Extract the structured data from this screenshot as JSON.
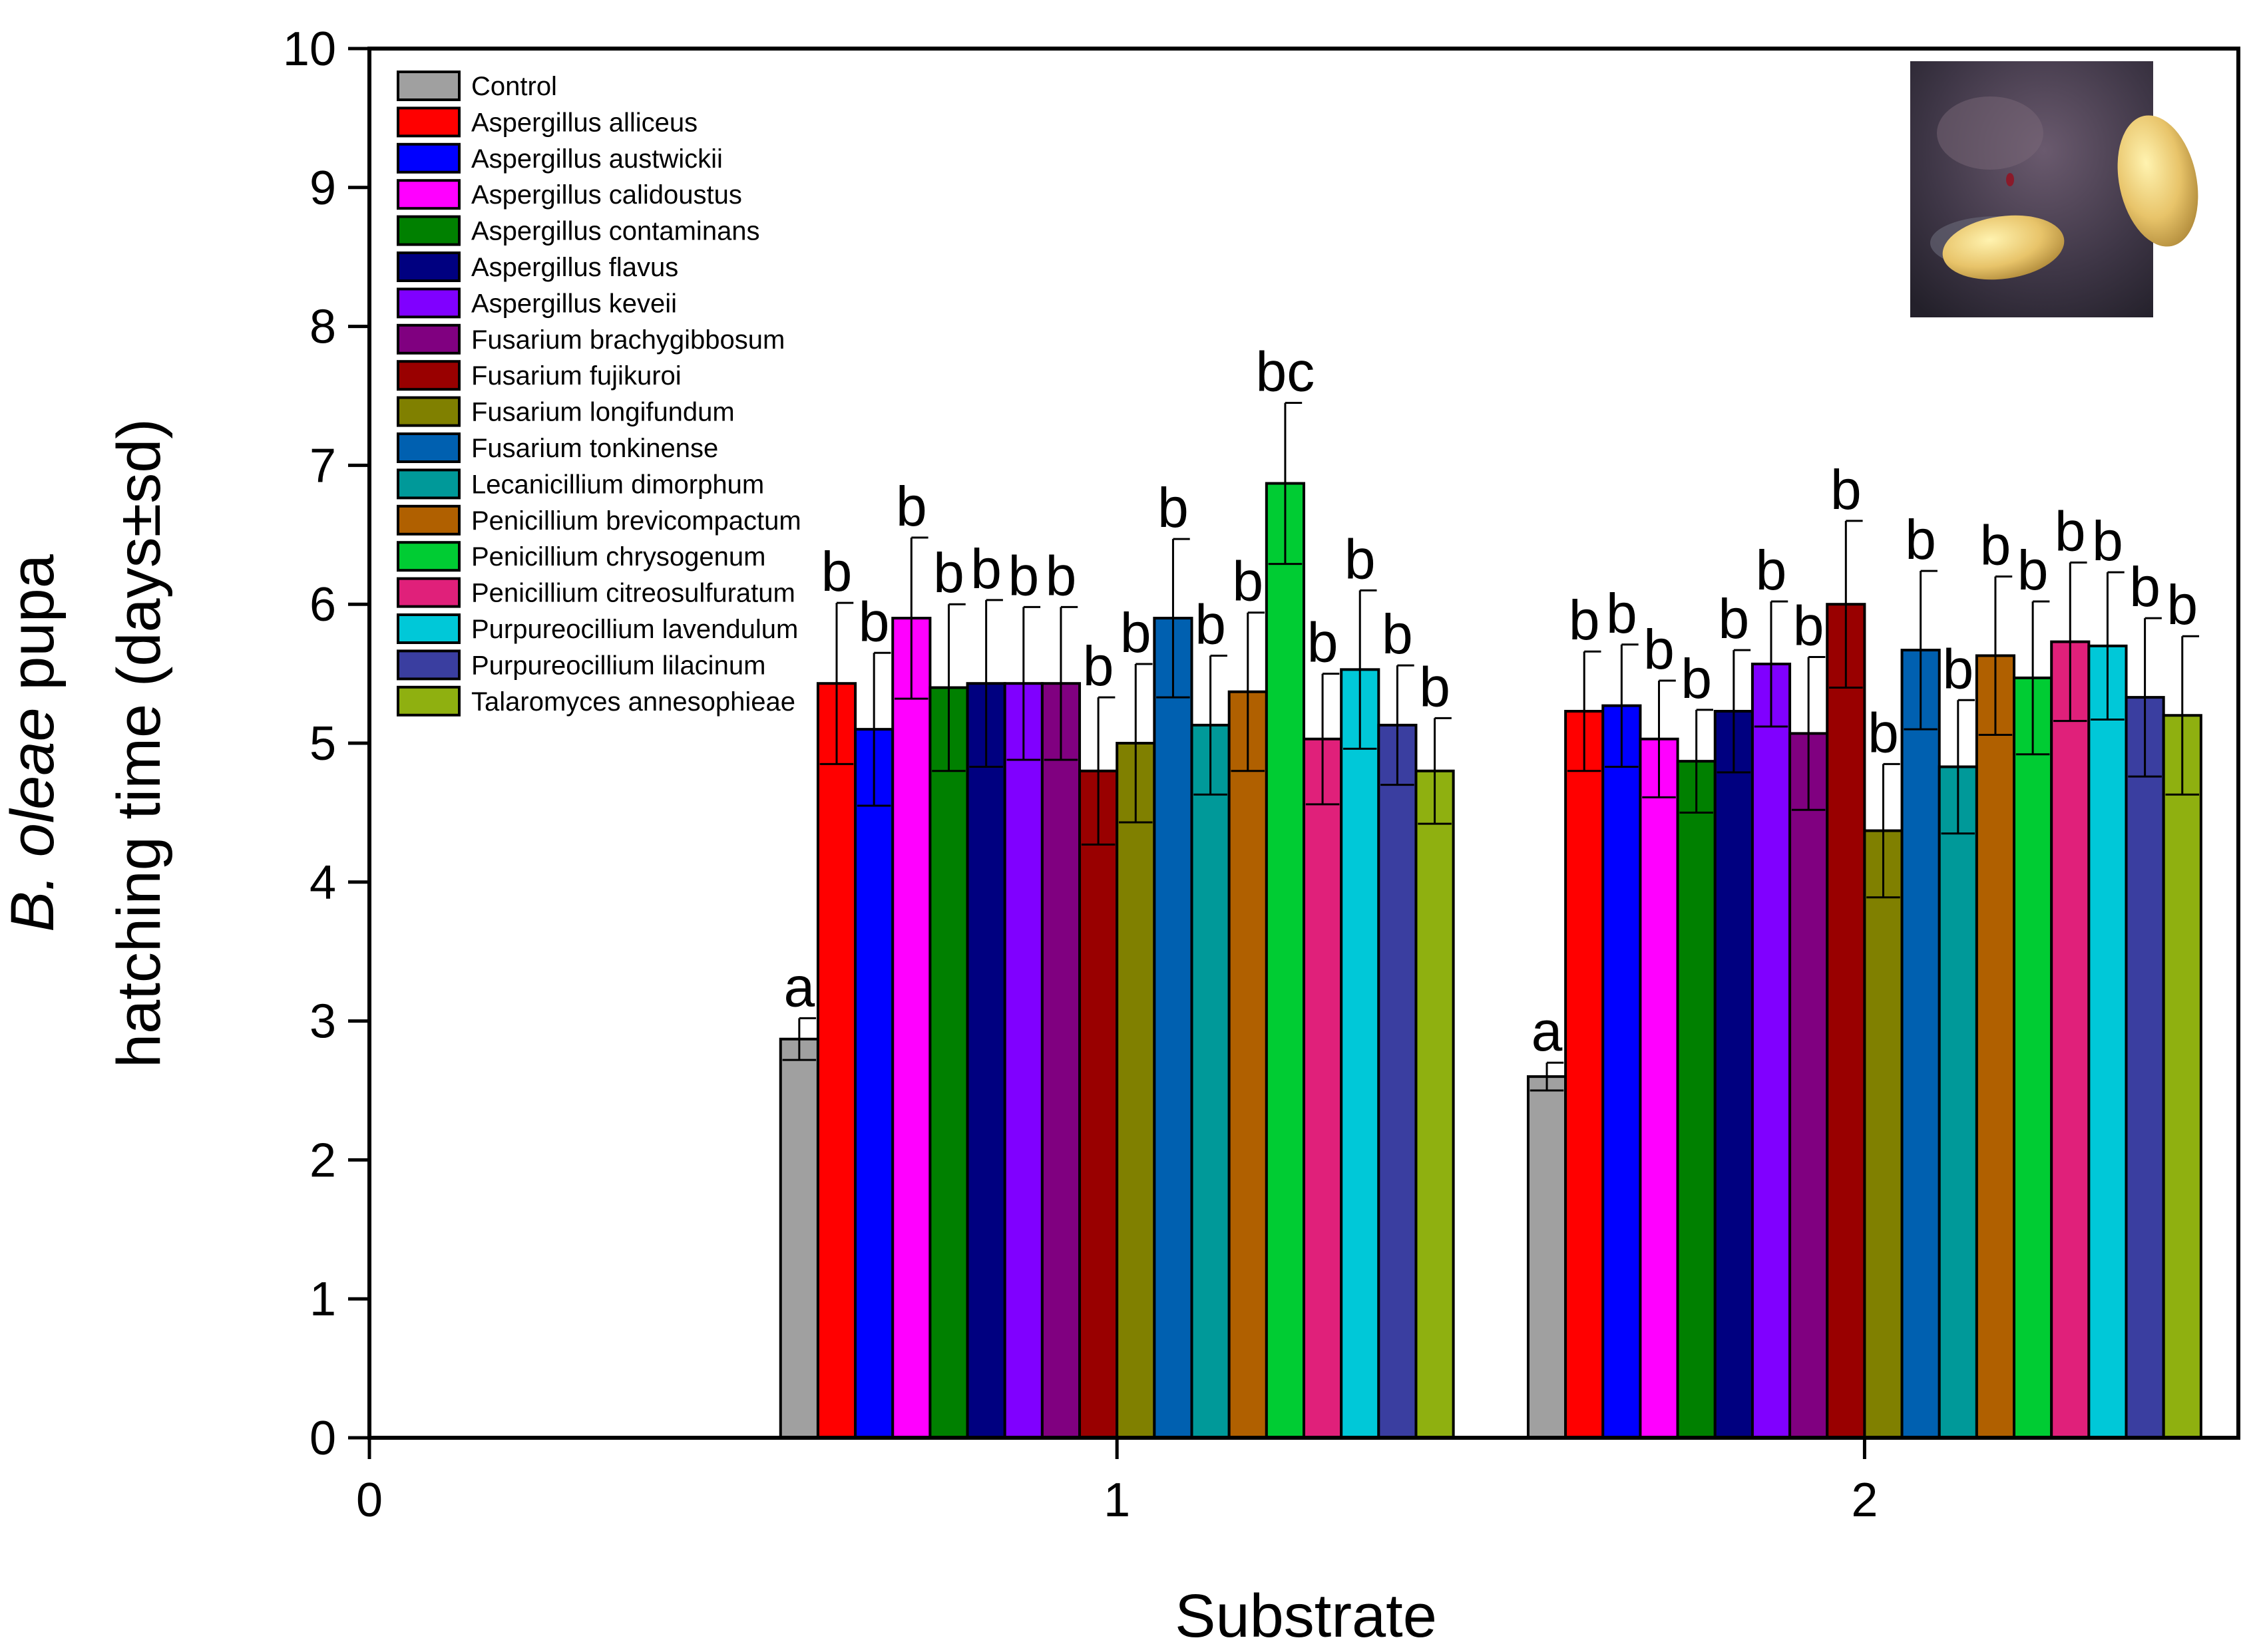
{
  "chart_data": {
    "type": "bar",
    "title": "",
    "xlabel": "Substrate",
    "ylabel_italic": "B. oleae",
    "ylabel_rest": " pupa",
    "ylabel_line2": "hatching time (days±sd)",
    "xlim": [
      0,
      2.5
    ],
    "ylim": [
      0,
      10
    ],
    "x_ticks": [
      "0",
      "1",
      "2"
    ],
    "y_ticks": [
      "0",
      "1",
      "2",
      "3",
      "4",
      "5",
      "6",
      "7",
      "8",
      "9",
      "10"
    ],
    "grid": false,
    "legend_position": "top-left",
    "categories": [
      "1",
      "2"
    ],
    "series": [
      {
        "name": "Control",
        "color": "#a0a0a0",
        "values": [
          2.87,
          2.6
        ],
        "sd": [
          0.15,
          0.1
        ],
        "letters": [
          "a",
          "a"
        ]
      },
      {
        "name": "Aspergillus alliceus",
        "color": "#ff0000",
        "values": [
          5.43,
          5.23
        ],
        "sd": [
          0.58,
          0.43
        ],
        "letters": [
          "b",
          "b"
        ]
      },
      {
        "name": "Aspergillus austwickii",
        "color": "#0000ff",
        "values": [
          5.1,
          5.27
        ],
        "sd": [
          0.55,
          0.44
        ],
        "letters": [
          "b",
          "b"
        ]
      },
      {
        "name": "Aspergillus calidoustus",
        "color": "#ff00ff",
        "values": [
          5.9,
          5.03
        ],
        "sd": [
          0.58,
          0.42
        ],
        "letters": [
          "b",
          "b"
        ]
      },
      {
        "name": "Aspergillus contaminans",
        "color": "#008000",
        "values": [
          5.4,
          4.87
        ],
        "sd": [
          0.6,
          0.37
        ],
        "letters": [
          "b",
          "b"
        ]
      },
      {
        "name": "Aspergillus flavus",
        "color": "#000080",
        "values": [
          5.43,
          5.23
        ],
        "sd": [
          0.6,
          0.44
        ],
        "letters": [
          "b",
          "b"
        ]
      },
      {
        "name": "Aspergillus keveii",
        "color": "#8000ff",
        "values": [
          5.43,
          5.57
        ],
        "sd": [
          0.55,
          0.45
        ],
        "letters": [
          "b",
          "b"
        ]
      },
      {
        "name": "Fusarium brachygibbosum",
        "color": "#800080",
        "values": [
          5.43,
          5.07
        ],
        "sd": [
          0.55,
          0.55
        ],
        "letters": [
          "b",
          "b"
        ]
      },
      {
        "name": "Fusarium fujikuroi",
        "color": "#990000",
        "values": [
          4.8,
          6.0
        ],
        "sd": [
          0.53,
          0.6
        ],
        "letters": [
          "b",
          "b"
        ]
      },
      {
        "name": "Fusarium longifundum",
        "color": "#808000",
        "values": [
          5.0,
          4.37
        ],
        "sd": [
          0.57,
          0.48
        ],
        "letters": [
          "b",
          "b"
        ]
      },
      {
        "name": "Fusarium tonkinense",
        "color": "#0060b0",
        "values": [
          5.9,
          5.67
        ],
        "sd": [
          0.57,
          0.57
        ],
        "letters": [
          "b",
          "b"
        ]
      },
      {
        "name": "Lecanicillium dimorphum",
        "color": "#009999",
        "values": [
          5.13,
          4.83
        ],
        "sd": [
          0.5,
          0.48
        ],
        "letters": [
          "b",
          "b"
        ]
      },
      {
        "name": "Penicillium brevicompactum",
        "color": "#b06000",
        "values": [
          5.37,
          5.63
        ],
        "sd": [
          0.57,
          0.57
        ],
        "letters": [
          "b",
          "b"
        ]
      },
      {
        "name": "Penicillium chrysogenum",
        "color": "#00cc33",
        "values": [
          6.87,
          5.47
        ],
        "sd": [
          0.58,
          0.55
        ],
        "letters": [
          "bc",
          "b"
        ]
      },
      {
        "name": "Penicillium citreosulfuratum",
        "color": "#e0207a",
        "values": [
          5.03,
          5.73
        ],
        "sd": [
          0.47,
          0.57
        ],
        "letters": [
          "b",
          "b"
        ]
      },
      {
        "name": "Purpureocillium lavendulum",
        "color": "#00c8d8",
        "values": [
          5.53,
          5.7
        ],
        "sd": [
          0.57,
          0.53
        ],
        "letters": [
          "b",
          "b"
        ]
      },
      {
        "name": "Purpureocillium lilacinum",
        "color": "#3a3ea0",
        "values": [
          5.13,
          5.33
        ],
        "sd": [
          0.43,
          0.57
        ],
        "letters": [
          "b",
          "b"
        ]
      },
      {
        "name": "Talaromyces annesophieae",
        "color": "#8fb010",
        "values": [
          4.8,
          5.2
        ],
        "sd": [
          0.38,
          0.57
        ],
        "letters": [
          "b",
          "b"
        ]
      }
    ]
  }
}
